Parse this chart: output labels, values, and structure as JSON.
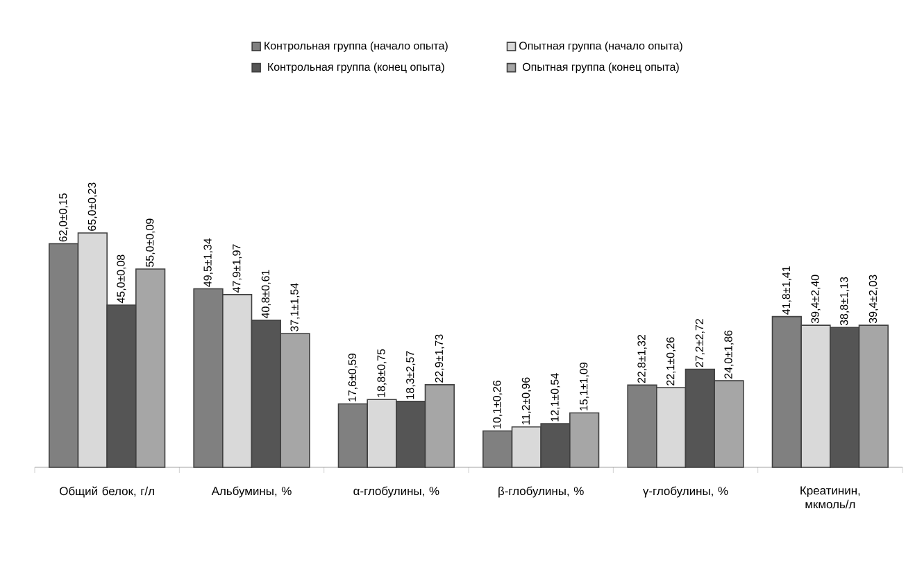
{
  "chart_data": {
    "type": "bar",
    "legend": "top",
    "categories": [
      "Общий белок, г/л",
      "Альбумины, %",
      "α-глобулины, %",
      "β-глобулины, %",
      "γ-глобулины, %",
      "Креатинин, мкмоль/л"
    ],
    "series": [
      {
        "name": "Контрольная группа (начало опыта)",
        "color": "#808080",
        "values": [
          62.0,
          49.5,
          17.6,
          10.1,
          22.8,
          41.8
        ],
        "value_labels": [
          "62,0±0,15",
          "49,5±1,34",
          "17,6±0,59",
          "10,1±0,26",
          "22,8±1,32",
          "41,8±1,41"
        ]
      },
      {
        "name": "Опытная группа (начало опыта)",
        "color": "#d9d9d9",
        "values": [
          65.0,
          47.9,
          18.8,
          11.2,
          22.1,
          39.4
        ],
        "value_labels": [
          "65,0±0,23",
          "47,9±1,97",
          "18,8±0,75",
          "11,2±0,96",
          "22,1±0,26",
          "39,4±2,40"
        ]
      },
      {
        "name": "Контрольная группа (конец опыта)",
        "color": "#555555",
        "values": [
          45.0,
          40.8,
          18.3,
          12.1,
          27.2,
          38.8
        ],
        "value_labels": [
          "45,0±0,08",
          "40,8±0,61",
          "18,3±2,57",
          "12,1±0,54",
          "27,2±2,72",
          "38,8±1,13"
        ]
      },
      {
        "name": "Опытная группа (конец опыта)",
        "color": "#a6a6a6",
        "values": [
          55.0,
          37.1,
          22.9,
          15.1,
          24.0,
          39.4
        ],
        "value_labels": [
          "55,0±0,09",
          "37,1±1,54",
          "22,9±1,73",
          "15,1±1,09",
          "24,0±1,86",
          "39,4±2,03"
        ]
      }
    ]
  }
}
